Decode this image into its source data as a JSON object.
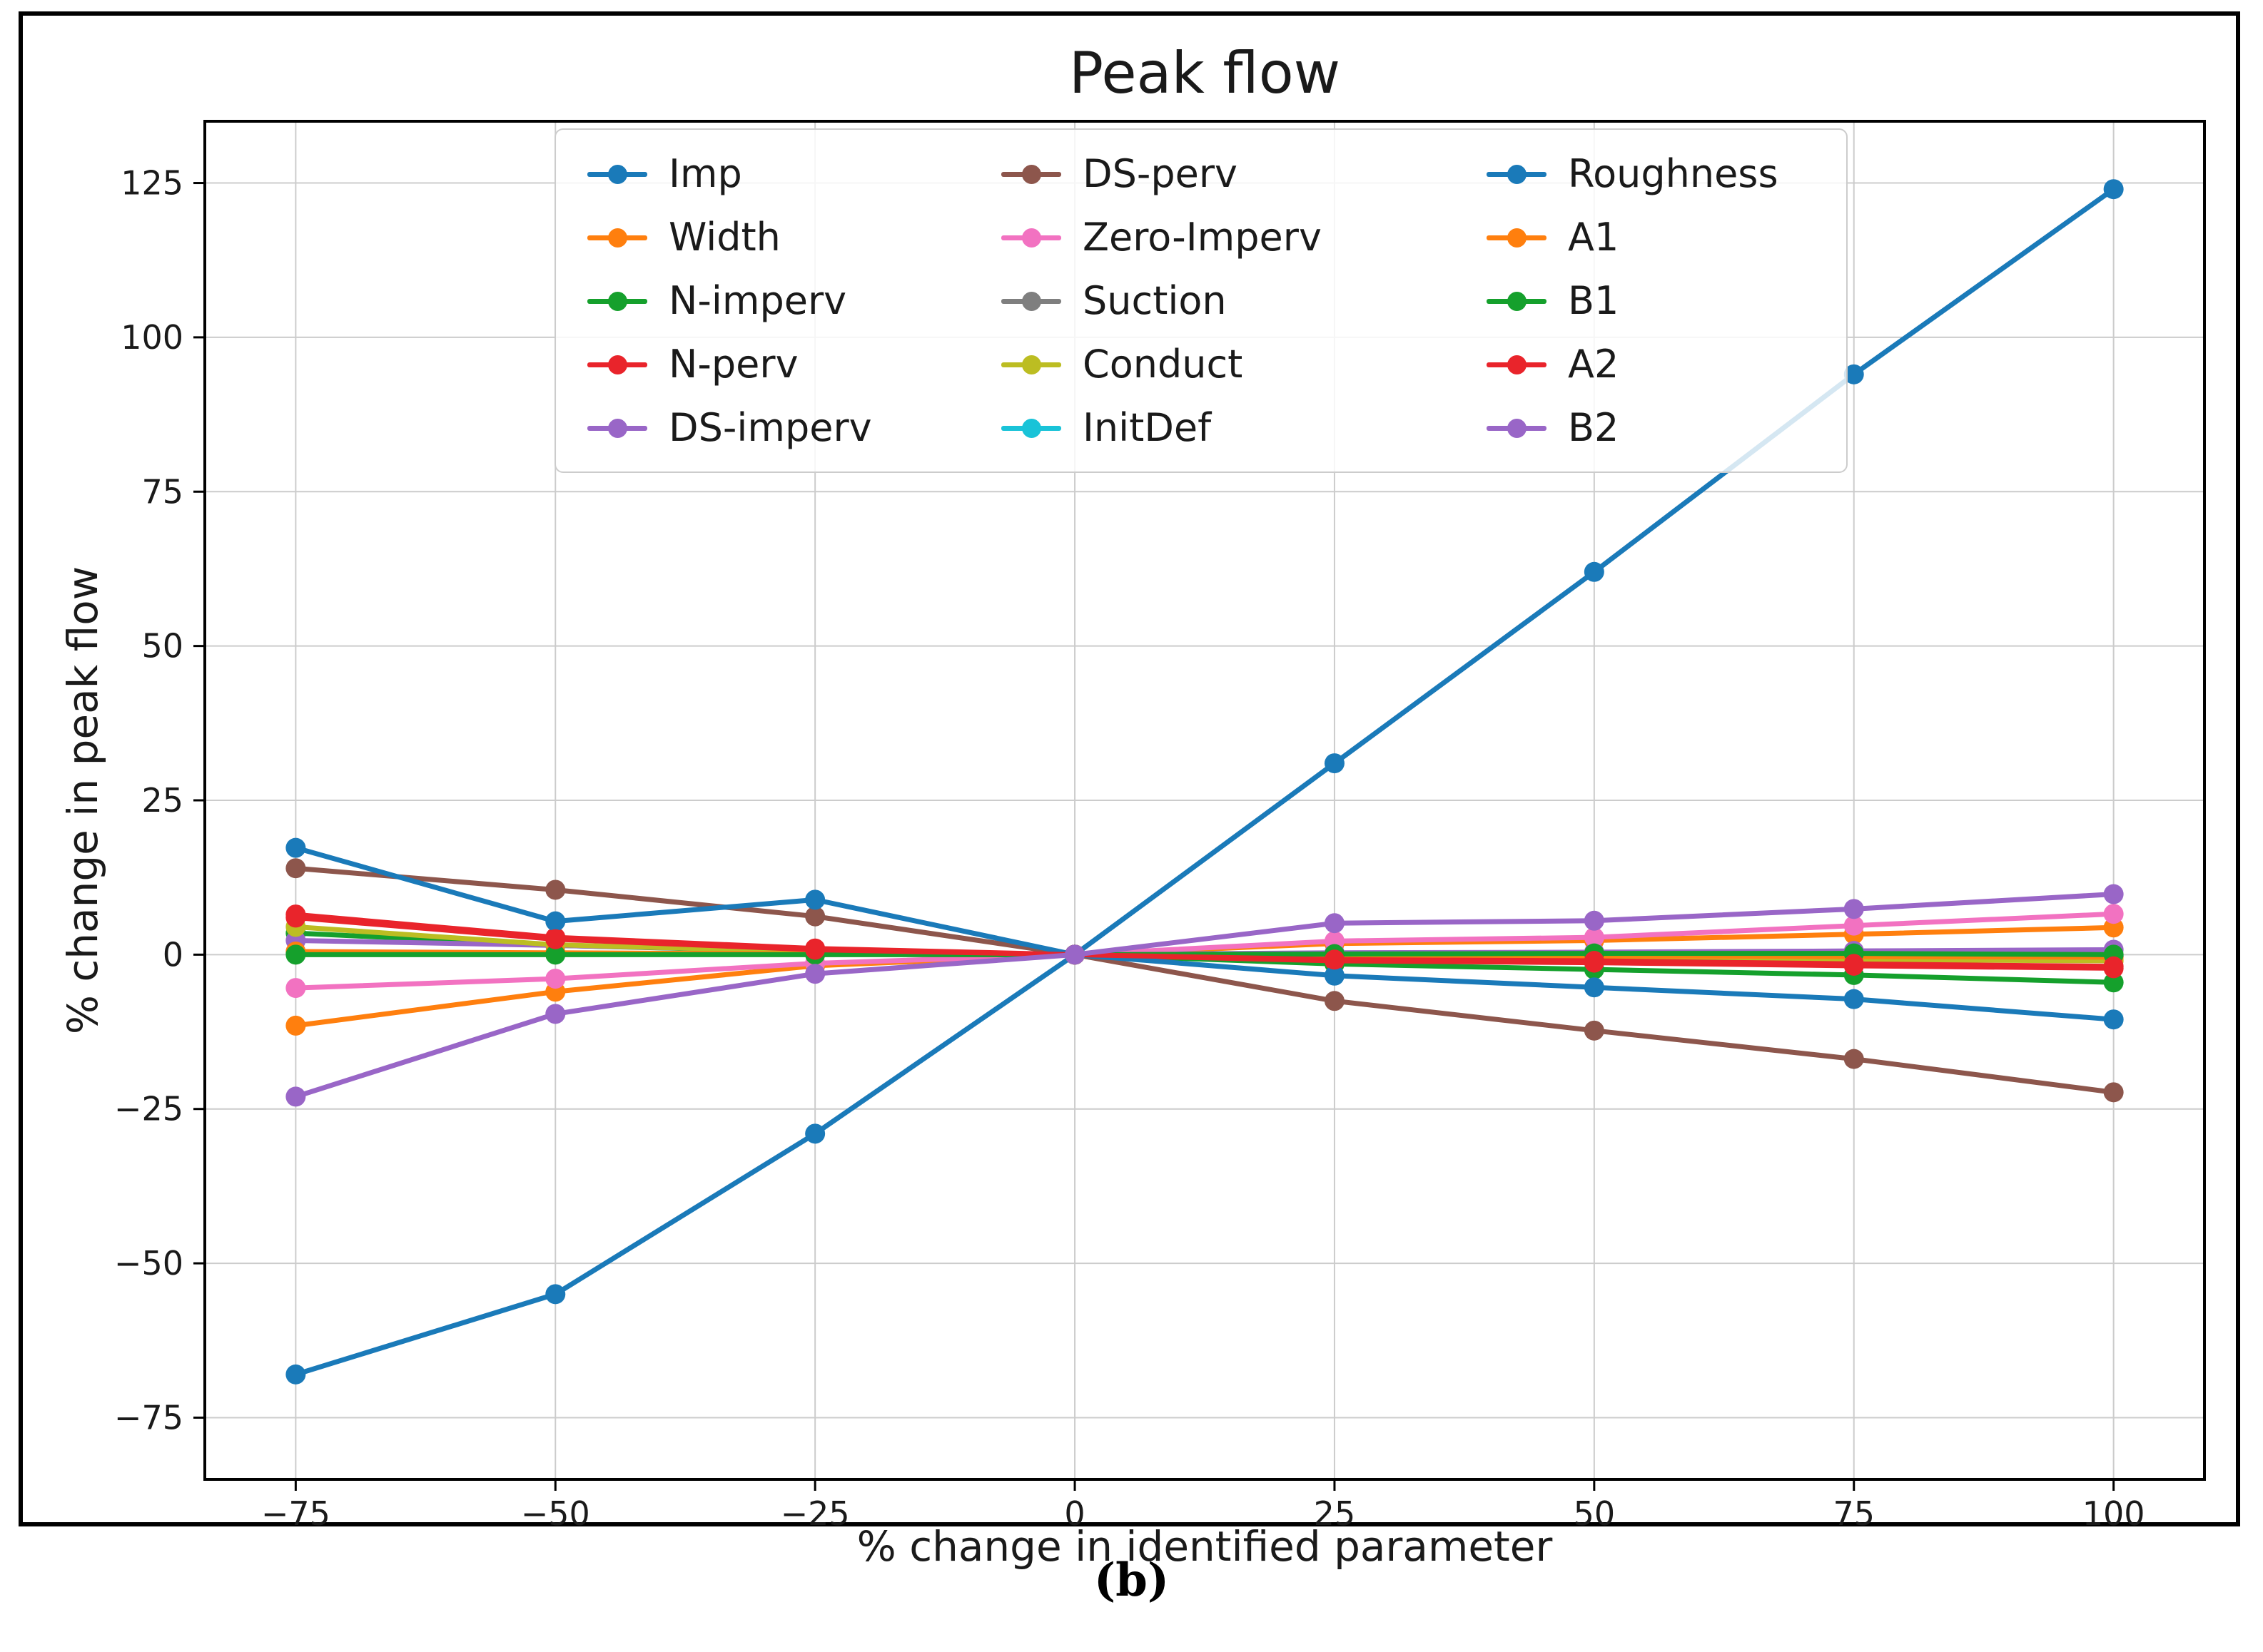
{
  "figure": {
    "caption": "(b)"
  },
  "chart_data": {
    "type": "line",
    "title": "Peak flow",
    "xlabel": "% change in identified parameter",
    "ylabel": "% change in peak flow",
    "x": [
      -75,
      -50,
      -25,
      0,
      25,
      50,
      75,
      100
    ],
    "xticks": [
      -75,
      -50,
      -25,
      0,
      25,
      50,
      75,
      100
    ],
    "yticks": [
      -75,
      -50,
      -25,
      0,
      25,
      50,
      75,
      100,
      125
    ],
    "xlim": [
      -83.75,
      108.75
    ],
    "ylim": [
      -85,
      135
    ],
    "grid": true,
    "grid_color": "#cccccc",
    "legend_position": "upper center inside plot, 3 columns",
    "marker": "o",
    "series": [
      {
        "name": "Imp",
        "color": "#1a7ab9",
        "values": [
          -68,
          -55,
          -29,
          0,
          31,
          62,
          94,
          124
        ]
      },
      {
        "name": "Width",
        "color": "#ff7f0e",
        "values": [
          -11.5,
          -6,
          -1.8,
          0,
          1.8,
          2.3,
          3.3,
          4.4
        ]
      },
      {
        "name": "N-imperv",
        "color": "#15a02c",
        "values": [
          3.5,
          1.5,
          0.5,
          0,
          -1.5,
          -2.4,
          -3.3,
          -4.5
        ]
      },
      {
        "name": "N-perv",
        "color": "#e9242b",
        "values": [
          6.5,
          2.8,
          1.0,
          0,
          -1.0,
          -1.3,
          -1.8,
          -2.2
        ]
      },
      {
        "name": "DS-imperv",
        "color": "#9966c7",
        "values": [
          2.3,
          1.5,
          0.6,
          0,
          0.3,
          0.4,
          0.6,
          0.8
        ]
      },
      {
        "name": "DS-perv",
        "color": "#8d564c",
        "values": [
          14,
          10.5,
          6.2,
          0,
          -7.5,
          -12.3,
          -16.9,
          -22.3
        ]
      },
      {
        "name": "Zero-Imperv",
        "color": "#f272c1",
        "values": [
          -5.4,
          -3.9,
          -1.4,
          0,
          2.2,
          2.8,
          4.7,
          6.6
        ]
      },
      {
        "name": "Suction",
        "color": "#7f7f7f",
        "values": [
          0.3,
          0.2,
          0.1,
          0,
          -0.1,
          -0.2,
          -0.2,
          -0.3
        ]
      },
      {
        "name": "Conduct",
        "color": "#bcbd22",
        "values": [
          4.5,
          1.6,
          0.5,
          0,
          -0.4,
          -0.6,
          -0.8,
          -1.0
        ]
      },
      {
        "name": "InitDef",
        "color": "#19c3d8",
        "values": [
          0.2,
          0.1,
          0.1,
          0,
          -0.1,
          -0.1,
          -0.2,
          -0.2
        ]
      },
      {
        "name": "Roughness",
        "color": "#1a7ab9",
        "values": [
          17.3,
          5.4,
          8.9,
          0,
          -3.4,
          -5.3,
          -7.2,
          -10.5
        ]
      },
      {
        "name": "A1",
        "color": "#ff7f0e",
        "values": [
          0.5,
          0.3,
          0.1,
          0,
          -0.1,
          -0.2,
          -0.3,
          -0.4
        ]
      },
      {
        "name": "B1",
        "color": "#15a02c",
        "values": [
          0.0,
          0.0,
          0.0,
          0,
          0.1,
          0.2,
          0.2,
          0.0
        ]
      },
      {
        "name": "A2",
        "color": "#e9242b",
        "values": [
          6.0,
          2.5,
          0.8,
          0,
          -0.8,
          -1.0,
          -1.5,
          -1.9
        ]
      },
      {
        "name": "B2",
        "color": "#9966c7",
        "values": [
          -23,
          -9.6,
          -3.1,
          0,
          5.1,
          5.5,
          7.4,
          9.8
        ]
      }
    ]
  }
}
